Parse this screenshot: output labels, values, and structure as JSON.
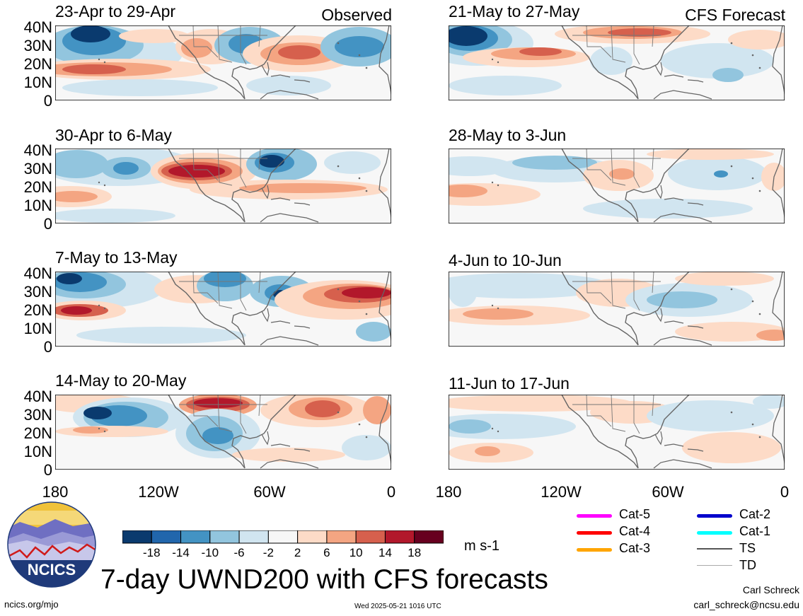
{
  "title": "7-day UWND200 with CFS forecasts",
  "logo": {
    "text": "NCICS"
  },
  "url": "ncics.org/mjo",
  "timestamp": "Wed 2025-05-21 1016 UTC",
  "author": {
    "name": "Carl Schreck",
    "email": "carl_schreck@ncsu.edu"
  },
  "section_labels": {
    "observed": "Observed",
    "forecast": "CFS Forecast"
  },
  "axes": {
    "lat_ticks": [
      "40N",
      "30N",
      "20N",
      "10N",
      "0"
    ],
    "lon_ticks": [
      "180",
      "120W",
      "60W",
      "0"
    ]
  },
  "panels": {
    "observed": [
      {
        "title": "23-Apr to 29-Apr"
      },
      {
        "title": "30-Apr to 6-May"
      },
      {
        "title": "7-May to 13-May"
      },
      {
        "title": "14-May to 20-May"
      }
    ],
    "forecast": [
      {
        "title": "21-May to 27-May"
      },
      {
        "title": "28-May to 3-Jun"
      },
      {
        "title": "4-Jun to 10-Jun"
      },
      {
        "title": "11-Jun to 17-Jun"
      }
    ]
  },
  "colorbar": {
    "unit": "m s-1",
    "labels": [
      "-18",
      "-14",
      "-10",
      "-6",
      "-2",
      "2",
      "6",
      "10",
      "14",
      "18"
    ],
    "colors": [
      "#0a3a6e",
      "#2166ac",
      "#4393c3",
      "#92c5de",
      "#d1e5f0",
      "#f7f7f7",
      "#fddbc7",
      "#f4a582",
      "#d6604d",
      "#b2182b",
      "#67001f"
    ]
  },
  "legend": [
    {
      "label": "Cat-5",
      "color": "#ff00ff"
    },
    {
      "label": "Cat-4",
      "color": "#ff0000"
    },
    {
      "label": "Cat-3",
      "color": "#ffa500"
    },
    {
      "label": "Cat-2",
      "color": "#0000cc"
    },
    {
      "label": "Cat-1",
      "color": "#00ffff"
    },
    {
      "label": "TS",
      "color": "#555555"
    },
    {
      "label": "TD",
      "color": "#aaaaaa"
    }
  ]
}
